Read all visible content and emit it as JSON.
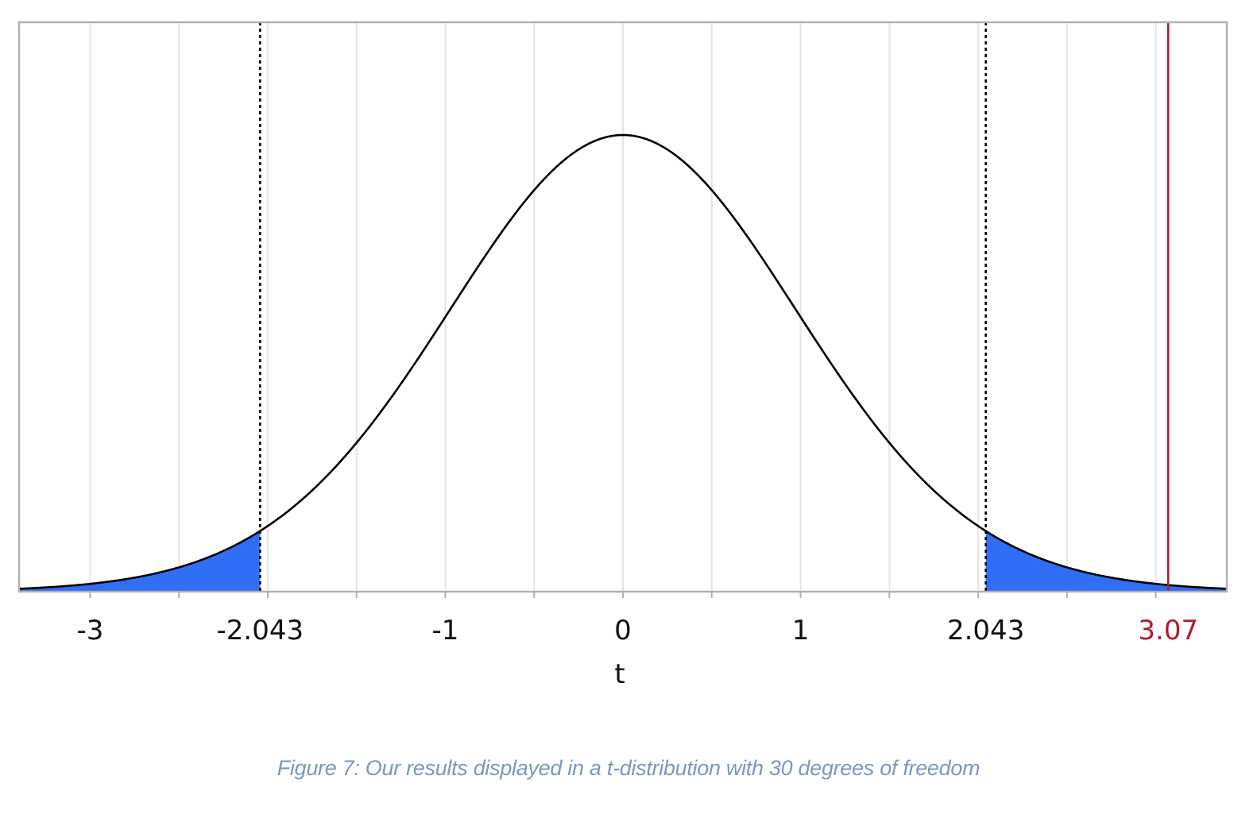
{
  "chart_data": {
    "type": "area",
    "distribution": "t",
    "degrees_of_freedom": 30,
    "xlabel": "t",
    "xlim": [
      -3.4,
      3.4
    ],
    "x_ticks": [
      {
        "value": -3,
        "label": "-3"
      },
      {
        "value": -2.043,
        "label": "-2.043"
      },
      {
        "value": -1,
        "label": "-1"
      },
      {
        "value": 0,
        "label": "0"
      },
      {
        "value": 1,
        "label": "1"
      },
      {
        "value": 2.043,
        "label": "2.043"
      },
      {
        "value": 3.07,
        "label": "3.07",
        "color": "#b01c2e"
      }
    ],
    "gridlines_x": [
      -3.5,
      -3,
      -2.5,
      -2,
      -1.5,
      -1,
      -0.5,
      0,
      0.5,
      1,
      1.5,
      2,
      2.5,
      3
    ],
    "critical_values": [
      -2.043,
      2.043
    ],
    "test_statistic": 3.07,
    "shaded_tails": true,
    "grid": true,
    "y_axis_visible": false
  },
  "colors": {
    "curve": "#000000",
    "tail_fill": "#2f6ef5",
    "critical_line": "#000000",
    "statistic_line": "#b01c2e",
    "grid": "#e4e4e4",
    "frame": "#b0b0b0",
    "caption": "#7b98bc"
  },
  "caption": "Figure 7: Our results displayed in a t-distribution with 30 degrees of freedom"
}
